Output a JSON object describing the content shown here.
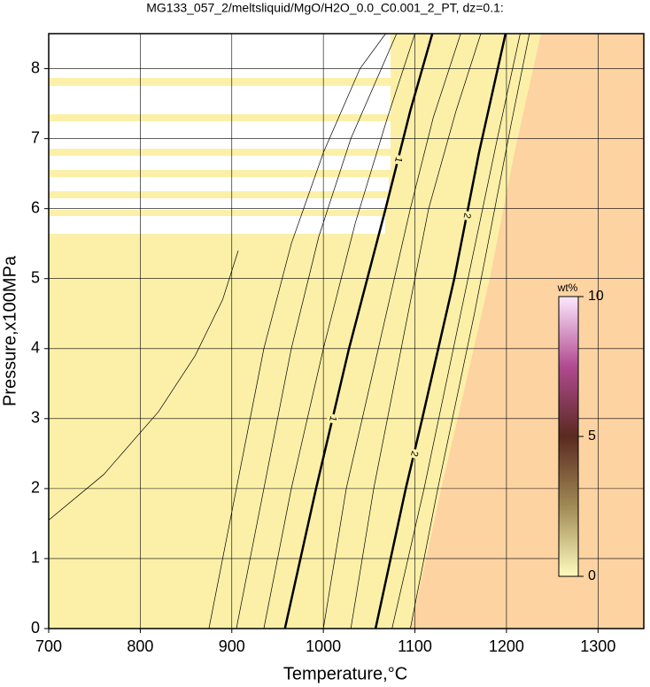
{
  "chart_data": {
    "type": "contour",
    "title": "MG133_057_2/meltsliquid/MgO/H2O_0.0_C0.001_2_PT, dz=0.1:",
    "x_label": "Temperature,°C",
    "y_label": "Pressure,x100MPa",
    "xlim": [
      700,
      1350
    ],
    "ylim": [
      0,
      8.5
    ],
    "xticks": [
      700,
      800,
      900,
      1000,
      1100,
      1200,
      1300
    ],
    "yticks": [
      0,
      1,
      2,
      3,
      4,
      5,
      6,
      7,
      8
    ],
    "grid": true,
    "contours": [
      {
        "level": 0.1,
        "x": [
          700,
          760,
          820,
          860,
          890,
          907
        ],
        "y": [
          1.55,
          2.2,
          3.1,
          3.9,
          4.7,
          5.4
        ]
      },
      {
        "level": 0.5,
        "x": [
          875,
          905,
          935,
          965,
          1000,
          1040,
          1068
        ],
        "y": [
          0,
          2,
          4,
          5.5,
          6.8,
          8.0,
          8.5
        ]
      },
      {
        "level": 0.7,
        "x": [
          905,
          935,
          965,
          995,
          1030,
          1080
        ],
        "y": [
          0,
          2,
          4,
          5.6,
          7,
          8.5
        ]
      },
      {
        "level": 0.9,
        "x": [
          935,
          965,
          1000,
          1035,
          1070,
          1100
        ],
        "y": [
          0,
          2,
          4,
          5.8,
          7.3,
          8.5
        ]
      },
      {
        "level": 1,
        "x": [
          958,
          992,
          1028,
          1068,
          1095,
          1119
        ],
        "y": [
          0,
          2,
          4,
          6,
          7.4,
          8.5
        ]
      },
      {
        "level": 1.3,
        "x": [
          1000,
          1025,
          1060,
          1095,
          1120,
          1150
        ],
        "y": [
          0,
          2,
          4,
          6,
          7.3,
          8.5
        ]
      },
      {
        "level": 1.6,
        "x": [
          1030,
          1055,
          1085,
          1115,
          1145,
          1172
        ],
        "y": [
          0,
          2,
          4,
          6,
          7.4,
          8.5
        ]
      },
      {
        "level": 2,
        "x": [
          1057,
          1090,
          1108,
          1143,
          1170,
          1199
        ],
        "y": [
          0,
          2,
          3,
          5,
          6.8,
          8.5
        ]
      },
      {
        "level": 2.3,
        "x": [
          1075,
          1110,
          1150,
          1190,
          1215
        ],
        "y": [
          0,
          2,
          4.5,
          7,
          8.5
        ]
      },
      {
        "level": 2.6,
        "x": [
          1095,
          1125,
          1165,
          1205,
          1225
        ],
        "y": [
          0,
          2,
          4.5,
          7.2,
          8.5
        ]
      }
    ],
    "colorbar": {
      "label": "wt%",
      "lim": [
        0,
        10
      ],
      "ticks": [
        0,
        5,
        10
      ]
    }
  }
}
